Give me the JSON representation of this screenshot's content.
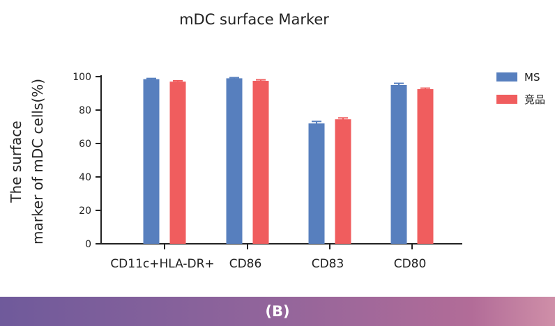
{
  "chart_data": {
    "type": "bar",
    "title": "mDC surface Marker",
    "ylabel": [
      "The surface",
      "marker of mDC cells(%)"
    ],
    "xlabel": "",
    "categories": [
      "CD11c+HLA-DR+",
      "CD86",
      "CD83",
      "CD80"
    ],
    "ylim": [
      0,
      100
    ],
    "yticks": [
      0,
      20,
      40,
      60,
      80,
      100
    ],
    "series": [
      {
        "name": "MS",
        "color": "#577fbe",
        "values": [
          98.5,
          99.0,
          72.0,
          95.0
        ],
        "errors": [
          0.4,
          0.4,
          1.2,
          1.0
        ]
      },
      {
        "name": "竞品",
        "color": "#f05d5e",
        "values": [
          97.0,
          97.5,
          74.5,
          92.5
        ],
        "errors": [
          0.5,
          0.6,
          0.8,
          0.6
        ]
      }
    ],
    "legend_position": "top-right",
    "grid": false
  },
  "footer": {
    "label": "(B)"
  }
}
